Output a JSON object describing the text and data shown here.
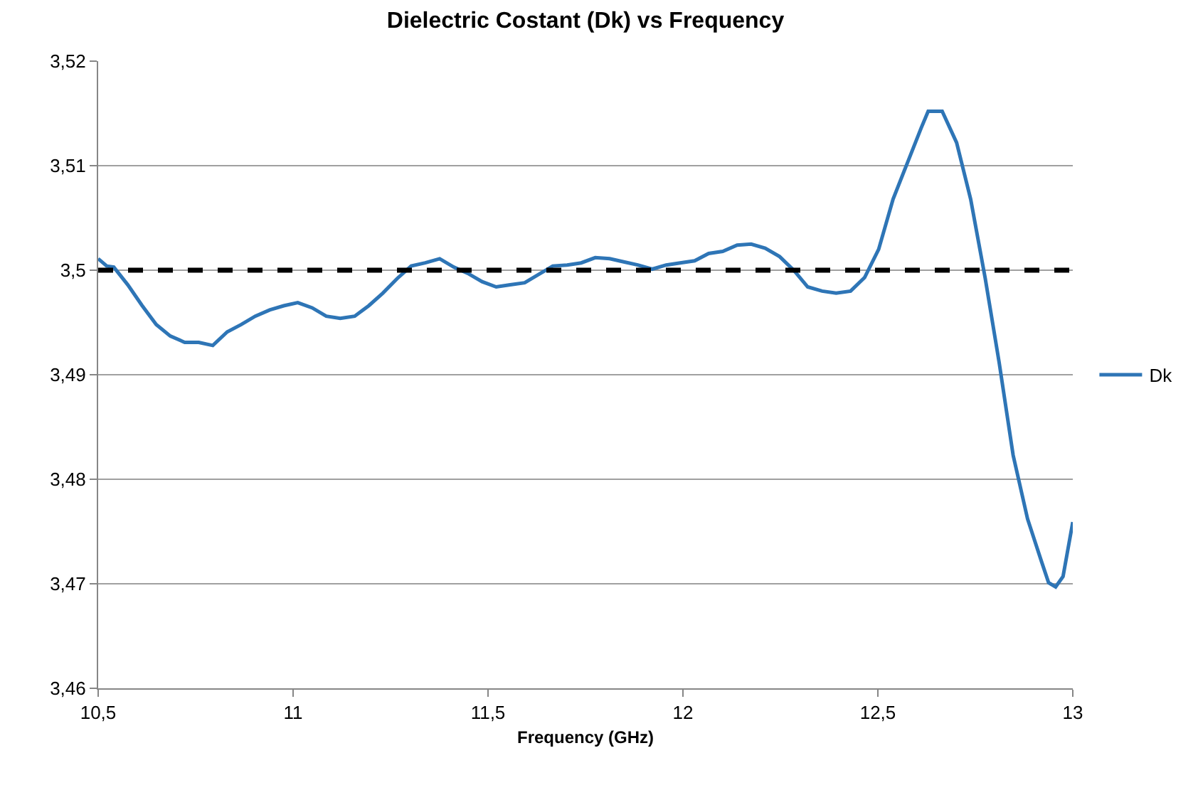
{
  "chart_data": {
    "type": "line",
    "title": "Dielectric Costant (Dk) vs Frequency",
    "xlabel": "Frequency (GHz)",
    "x": [
      10.5,
      10.522,
      10.54,
      10.576,
      10.613,
      10.649,
      10.685,
      10.722,
      10.758,
      10.794,
      10.831,
      10.867,
      10.903,
      10.94,
      10.976,
      11.012,
      11.049,
      11.085,
      11.121,
      11.158,
      11.194,
      11.23,
      11.267,
      11.303,
      11.339,
      11.376,
      11.412,
      11.448,
      11.485,
      11.521,
      11.557,
      11.594,
      11.63,
      11.666,
      11.703,
      11.739,
      11.775,
      11.812,
      11.848,
      11.884,
      11.921,
      11.957,
      11.993,
      12.03,
      12.066,
      12.102,
      12.139,
      12.175,
      12.211,
      12.248,
      12.284,
      12.32,
      12.357,
      12.393,
      12.43,
      12.466,
      12.502,
      12.539,
      12.575,
      12.611,
      12.629,
      12.665,
      12.702,
      12.738,
      12.775,
      12.811,
      12.847,
      12.884,
      12.92,
      12.938,
      12.956,
      12.975,
      13.0
    ],
    "series": [
      {
        "name": "Dk",
        "color": "#2e75b6",
        "values": [
          3.5011,
          3.5004,
          3.5003,
          3.4986,
          3.4966,
          3.4948,
          3.4937,
          3.4931,
          3.4931,
          3.4928,
          3.4941,
          3.4948,
          3.4956,
          3.4962,
          3.4966,
          3.4969,
          3.4964,
          3.4956,
          3.4954,
          3.4956,
          3.4966,
          3.4978,
          3.4992,
          3.5004,
          3.5007,
          3.5011,
          3.5003,
          3.4997,
          3.4989,
          3.4984,
          3.4986,
          3.4988,
          3.4996,
          3.5004,
          3.5005,
          3.5007,
          3.5012,
          3.5011,
          3.5008,
          3.5005,
          3.5001,
          3.5005,
          3.5007,
          3.5009,
          3.5016,
          3.5018,
          3.5024,
          3.5025,
          3.5021,
          3.5013,
          3.5,
          3.4984,
          3.498,
          3.4978,
          3.498,
          3.4993,
          3.502,
          3.5068,
          3.5102,
          3.5136,
          3.5152,
          3.5152,
          3.5122,
          3.5068,
          3.4993,
          3.4912,
          3.4823,
          3.4762,
          3.4721,
          3.4701,
          3.4697,
          3.4707,
          3.4759
        ]
      }
    ],
    "xlim": [
      10.5,
      13
    ],
    "xticks": [
      {
        "value": 10.5,
        "label": "10,5"
      },
      11,
      {
        "value": 11.5,
        "label": "11,5"
      },
      12,
      {
        "value": 12.5,
        "label": "12,5"
      },
      13
    ],
    "ylim": [
      3.46,
      3.52
    ],
    "yticks": [
      {
        "value": 3.46,
        "label": "3,46"
      },
      {
        "value": 3.47,
        "label": "3,47"
      },
      {
        "value": 3.48,
        "label": "3,48"
      },
      {
        "value": 3.49,
        "label": "3,49"
      },
      {
        "value": 3.5,
        "label": "3,5"
      },
      {
        "value": 3.51,
        "label": "3,51"
      },
      {
        "value": 3.52,
        "label": "3,52"
      }
    ],
    "ref_lines": [
      {
        "axis": "y",
        "value": 3.5,
        "color": "#000000",
        "line_style": "dashed"
      }
    ],
    "grid": "y",
    "legend": "right",
    "marker": "none",
    "line_style": "solid"
  }
}
